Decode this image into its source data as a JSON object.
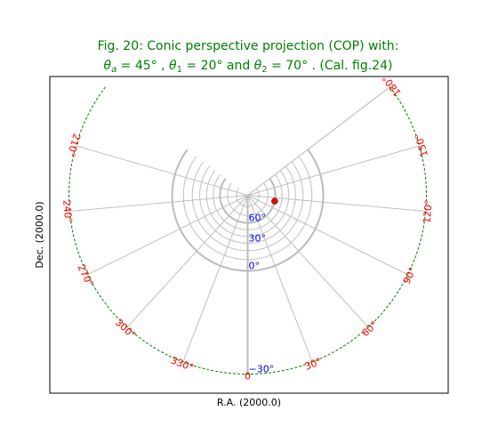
{
  "title": {
    "line1": "Fig. 20: Conic perspective projection (COP) with:",
    "line2": "θa = 45° , θ1 = 20°  and θ2 = 70° . (Cal. fig.24)",
    "line2_parts": {
      "theta_a_sym": "θ",
      "theta_a_sub": "a",
      "theta_a_val": " = 45° , ",
      "theta_1_sym": "θ",
      "theta_1_sub": "1",
      "theta_1_val": " = 20°  and ",
      "theta_2_sym": "θ",
      "theta_2_sub": "2",
      "theta_2_val": " = 70° . (Cal. fig.24)"
    }
  },
  "chart_data": {
    "type": "graticule",
    "projection": "COP",
    "parameters": {
      "theta_a": 45,
      "theta_1": 20,
      "theta_2": 70
    },
    "xlabel": "R.A. (2000.0)",
    "ylabel": "Dec. (2000.0)",
    "meridians_ra": [
      0,
      30,
      60,
      90,
      120,
      150,
      180,
      210,
      240,
      270,
      300,
      330
    ],
    "ra_labels": [
      "0",
      "30°",
      "60°",
      "90°",
      "120°",
      "150°",
      "180°",
      "210°",
      "240°",
      "270°",
      "300°",
      "330°"
    ],
    "parallels_dec": [
      -30,
      0,
      10,
      20,
      30,
      40,
      50,
      60,
      70,
      80
    ],
    "highlight_parallels": [
      0,
      60
    ],
    "dec_labels": [
      {
        "dec": 60,
        "text": "60°"
      },
      {
        "dec": 30,
        "text": "30°"
      },
      {
        "dec": 0,
        "text": "0°"
      },
      {
        "dec": -30,
        "text": "−30°"
      }
    ],
    "border_dec": -30,
    "marker": {
      "ra": 110,
      "dec": 60
    },
    "colors": {
      "title": "#008000",
      "grid": "#c0c0c0",
      "highlight": "#bbbbbb",
      "border": "#008000",
      "ra_labels": "#ff0000",
      "dec_labels": "#0000ff",
      "marker": "#ff0000"
    }
  }
}
